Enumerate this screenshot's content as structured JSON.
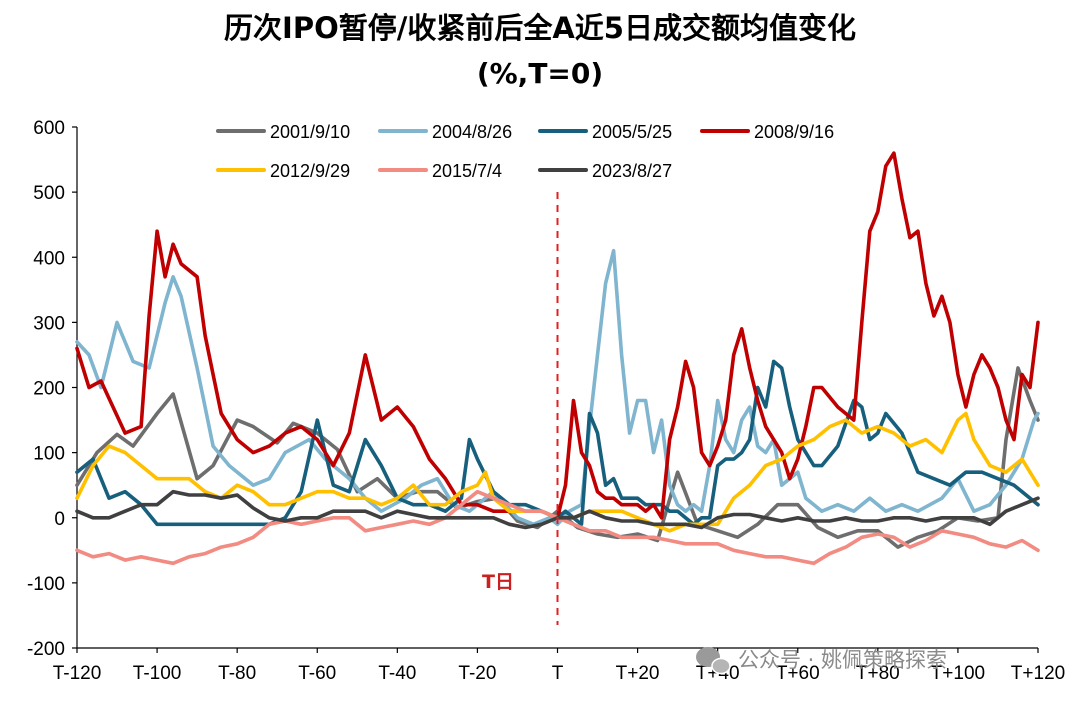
{
  "chart_data": {
    "type": "line",
    "title": "历次IPO暂停/收紧前后全A近5日成交额均值变化",
    "subtitle": "(%,T=0)",
    "x_ticks": [
      "T-120",
      "T-100",
      "T-80",
      "T-60",
      "T-40",
      "T-20",
      "T",
      "T+20",
      "T+40",
      "T+60",
      "T+80",
      "T+100",
      "T+120"
    ],
    "x_range": [
      -120,
      120
    ],
    "ylim": [
      -200,
      600
    ],
    "y_ticks": [
      -200,
      -100,
      0,
      100,
      200,
      300,
      400,
      500,
      600
    ],
    "annotation": "T日",
    "legend_position": "top",
    "series": [
      {
        "name": "2001/9/10",
        "color": "#6e6e6e",
        "x": [
          -120,
          -115,
          -110,
          -106,
          -100,
          -96,
          -90,
          -86,
          -80,
          -76,
          -70,
          -66,
          -60,
          -55,
          -50,
          -45,
          -40,
          -35,
          -30,
          -25,
          -20,
          -15,
          -10,
          -5,
          0,
          5,
          10,
          15,
          20,
          25,
          30,
          35,
          40,
          45,
          50,
          55,
          60,
          65,
          70,
          75,
          80,
          85,
          90,
          95,
          100,
          105,
          110,
          112,
          115,
          118,
          120
        ],
        "y": [
          50,
          100,
          128,
          110,
          160,
          190,
          60,
          80,
          150,
          140,
          115,
          145,
          130,
          105,
          40,
          60,
          30,
          40,
          40,
          15,
          25,
          30,
          -5,
          -15,
          10,
          -15,
          -25,
          -30,
          -25,
          -35,
          70,
          -10,
          -20,
          -30,
          -10,
          20,
          20,
          -15,
          -30,
          -20,
          -20,
          -45,
          -30,
          -20,
          0,
          -5,
          0,
          120,
          230,
          180,
          150
        ]
      },
      {
        "name": "2004/8/26",
        "color": "#7fb5cf",
        "x": [
          -120,
          -117,
          -114,
          -110,
          -106,
          -102,
          -98,
          -96,
          -94,
          -90,
          -86,
          -82,
          -76,
          -72,
          -68,
          -62,
          -58,
          -52,
          -48,
          -44,
          -38,
          -34,
          -30,
          -26,
          -22,
          -16,
          -10,
          -6,
          -2,
          0,
          3,
          6,
          8,
          10,
          12,
          14,
          16,
          18,
          20,
          22,
          24,
          26,
          28,
          30,
          32,
          34,
          36,
          38,
          40,
          42,
          44,
          46,
          48,
          50,
          52,
          54,
          56,
          58,
          60,
          62,
          66,
          70,
          74,
          78,
          82,
          86,
          90,
          96,
          100,
          104,
          108,
          112,
          116,
          119,
          120
        ],
        "y": [
          270,
          250,
          200,
          300,
          240,
          230,
          330,
          370,
          340,
          230,
          110,
          80,
          50,
          60,
          100,
          120,
          90,
          60,
          30,
          10,
          30,
          50,
          60,
          20,
          10,
          40,
          0,
          -10,
          0,
          -10,
          10,
          20,
          140,
          250,
          360,
          410,
          250,
          130,
          180,
          180,
          100,
          150,
          50,
          20,
          10,
          20,
          10,
          80,
          180,
          120,
          100,
          150,
          170,
          110,
          100,
          120,
          50,
          60,
          70,
          30,
          10,
          20,
          10,
          30,
          10,
          20,
          10,
          30,
          60,
          10,
          20,
          50,
          90,
          150,
          160
        ]
      },
      {
        "name": "2005/5/25",
        "color": "#17607d",
        "x": [
          -120,
          -116,
          -112,
          -108,
          -104,
          -100,
          -96,
          -92,
          -88,
          -84,
          -80,
          -76,
          -72,
          -68,
          -64,
          -60,
          -56,
          -52,
          -48,
          -44,
          -40,
          -36,
          -32,
          -28,
          -24,
          -22,
          -20,
          -16,
          -12,
          -8,
          -4,
          0,
          2,
          4,
          6,
          8,
          10,
          12,
          14,
          16,
          18,
          20,
          22,
          24,
          26,
          28,
          30,
          32,
          34,
          36,
          38,
          40,
          42,
          44,
          46,
          48,
          50,
          52,
          54,
          56,
          58,
          60,
          62,
          64,
          66,
          70,
          74,
          76,
          78,
          80,
          82,
          86,
          90,
          94,
          98,
          102,
          106,
          110,
          114,
          118,
          120
        ],
        "y": [
          70,
          90,
          30,
          40,
          20,
          -10,
          -10,
          -10,
          -10,
          -10,
          -10,
          -10,
          -10,
          0,
          40,
          150,
          50,
          40,
          120,
          80,
          30,
          20,
          20,
          10,
          30,
          120,
          90,
          40,
          20,
          20,
          10,
          0,
          10,
          0,
          -10,
          160,
          130,
          50,
          60,
          30,
          30,
          30,
          20,
          20,
          20,
          10,
          10,
          0,
          -10,
          0,
          0,
          80,
          90,
          90,
          100,
          120,
          200,
          170,
          240,
          230,
          170,
          120,
          100,
          80,
          80,
          110,
          180,
          170,
          120,
          130,
          160,
          130,
          70,
          60,
          50,
          70,
          70,
          60,
          50,
          30,
          20
        ]
      },
      {
        "name": "2008/9/16",
        "color": "#c00000",
        "x": [
          -120,
          -117,
          -114,
          -111,
          -108,
          -104,
          -102,
          -100,
          -98,
          -96,
          -94,
          -92,
          -90,
          -88,
          -86,
          -84,
          -80,
          -76,
          -72,
          -68,
          -64,
          -60,
          -56,
          -52,
          -48,
          -44,
          -40,
          -36,
          -32,
          -28,
          -24,
          -20,
          -16,
          -12,
          -8,
          -4,
          0,
          2,
          4,
          6,
          8,
          10,
          12,
          14,
          16,
          18,
          20,
          22,
          24,
          26,
          28,
          30,
          32,
          34,
          36,
          38,
          40,
          42,
          44,
          46,
          48,
          50,
          52,
          54,
          56,
          58,
          60,
          62,
          64,
          66,
          70,
          74,
          76,
          78,
          80,
          82,
          84,
          86,
          88,
          90,
          92,
          94,
          96,
          98,
          100,
          102,
          104,
          106,
          108,
          110,
          112,
          114,
          116,
          118,
          120
        ],
        "y": [
          260,
          200,
          210,
          170,
          130,
          140,
          310,
          440,
          370,
          420,
          390,
          380,
          370,
          280,
          220,
          160,
          120,
          100,
          110,
          130,
          140,
          120,
          80,
          130,
          250,
          150,
          170,
          140,
          90,
          60,
          20,
          20,
          10,
          10,
          10,
          10,
          0,
          50,
          180,
          100,
          80,
          40,
          30,
          30,
          20,
          20,
          20,
          10,
          20,
          0,
          120,
          170,
          240,
          200,
          100,
          80,
          110,
          150,
          250,
          290,
          230,
          180,
          140,
          120,
          100,
          60,
          90,
          140,
          200,
          200,
          170,
          150,
          300,
          440,
          470,
          540,
          560,
          490,
          430,
          440,
          360,
          310,
          340,
          300,
          220,
          170,
          220,
          250,
          230,
          200,
          150,
          120,
          220,
          200,
          300
        ]
      },
      {
        "name": "2012/9/29",
        "color": "#ffc000",
        "x": [
          -120,
          -116,
          -112,
          -108,
          -104,
          -100,
          -96,
          -92,
          -88,
          -84,
          -80,
          -76,
          -72,
          -68,
          -64,
          -60,
          -56,
          -52,
          -48,
          -44,
          -40,
          -36,
          -32,
          -28,
          -24,
          -20,
          -18,
          -16,
          -12,
          -8,
          -4,
          0,
          4,
          8,
          12,
          16,
          20,
          24,
          28,
          32,
          36,
          40,
          44,
          48,
          52,
          56,
          60,
          64,
          68,
          72,
          76,
          80,
          84,
          88,
          92,
          96,
          100,
          102,
          104,
          108,
          112,
          116,
          120
        ],
        "y": [
          30,
          80,
          110,
          100,
          80,
          60,
          60,
          60,
          40,
          30,
          50,
          40,
          20,
          20,
          30,
          40,
          40,
          30,
          30,
          20,
          30,
          50,
          20,
          20,
          40,
          50,
          70,
          30,
          10,
          10,
          10,
          0,
          0,
          10,
          10,
          10,
          0,
          -10,
          -20,
          -10,
          -10,
          -10,
          30,
          50,
          80,
          90,
          110,
          120,
          140,
          150,
          130,
          140,
          130,
          110,
          120,
          100,
          150,
          160,
          120,
          80,
          70,
          90,
          50
        ]
      },
      {
        "name": "2015/7/4",
        "color": "#f28b82",
        "x": [
          -120,
          -116,
          -112,
          -108,
          -104,
          -100,
          -96,
          -92,
          -88,
          -84,
          -80,
          -76,
          -72,
          -68,
          -64,
          -60,
          -56,
          -52,
          -48,
          -44,
          -40,
          -36,
          -32,
          -28,
          -24,
          -20,
          -16,
          -12,
          -8,
          -4,
          0,
          4,
          8,
          12,
          16,
          20,
          24,
          28,
          32,
          36,
          40,
          44,
          48,
          52,
          56,
          60,
          64,
          68,
          72,
          76,
          80,
          84,
          88,
          92,
          96,
          100,
          104,
          108,
          112,
          116,
          120
        ],
        "y": [
          -50,
          -60,
          -55,
          -65,
          -60,
          -65,
          -70,
          -60,
          -55,
          -45,
          -40,
          -30,
          -10,
          -5,
          -10,
          -5,
          0,
          0,
          -20,
          -15,
          -10,
          -5,
          -10,
          0,
          20,
          40,
          30,
          20,
          10,
          10,
          0,
          -10,
          -20,
          -20,
          -30,
          -30,
          -30,
          -35,
          -40,
          -40,
          -40,
          -50,
          -55,
          -60,
          -60,
          -65,
          -70,
          -55,
          -45,
          -30,
          -25,
          -30,
          -45,
          -35,
          -20,
          -25,
          -30,
          -40,
          -45,
          -35,
          -50
        ]
      },
      {
        "name": "2023/8/27",
        "color": "#404040",
        "x": [
          -120,
          -116,
          -112,
          -108,
          -104,
          -100,
          -96,
          -92,
          -88,
          -84,
          -80,
          -76,
          -72,
          -68,
          -64,
          -60,
          -56,
          -52,
          -48,
          -44,
          -40,
          -36,
          -32,
          -28,
          -24,
          -20,
          -16,
          -12,
          -8,
          -4,
          0,
          4,
          8,
          12,
          16,
          20,
          24,
          28,
          32,
          36,
          40,
          44,
          48,
          52,
          56,
          60,
          64,
          68,
          72,
          76,
          80,
          84,
          88,
          92,
          96,
          100,
          104,
          108,
          112,
          116,
          120
        ],
        "y": [
          10,
          0,
          0,
          10,
          20,
          20,
          40,
          35,
          35,
          30,
          35,
          15,
          0,
          -5,
          0,
          0,
          10,
          10,
          10,
          0,
          10,
          5,
          0,
          0,
          0,
          0,
          0,
          -10,
          -15,
          -10,
          0,
          0,
          10,
          0,
          -5,
          -5,
          -10,
          -10,
          -10,
          -15,
          0,
          5,
          5,
          0,
          -5,
          0,
          -5,
          -5,
          0,
          -5,
          -5,
          0,
          0,
          -5,
          0,
          0,
          0,
          -10,
          10,
          20,
          30
        ]
      }
    ]
  },
  "watermark": {
    "icon": "wechat-icon",
    "text": "公众号 · 姚佩策略探索"
  }
}
